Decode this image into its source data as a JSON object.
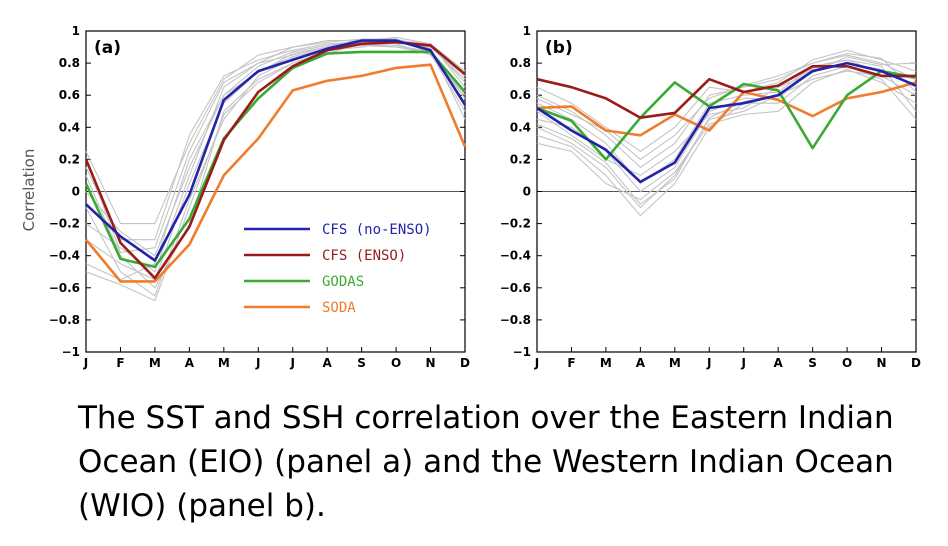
{
  "caption": "The SST and SSH correlation over the Eastern Indian Ocean (EIO) (panel a) and the Western Indian Ocean (WIO) (panel b).",
  "ylabel": "Correlation",
  "colors": {
    "CFS (no-ENSO)": "#2222aa",
    "CFS (ENSO)": "#9b1b1b",
    "GODAS": "#3aaa35",
    "SODA": "#f07c2c",
    "members": "#c4c4c4",
    "zero": "#555555"
  },
  "legend": [
    "CFS (no-ENSO)",
    "CFS (ENSO)",
    "GODAS",
    "SODA"
  ],
  "chart_data": [
    {
      "type": "line",
      "panel_label": "(a)",
      "categories": [
        "J",
        "F",
        "M",
        "A",
        "M",
        "J",
        "J",
        "A",
        "S",
        "O",
        "N",
        "D"
      ],
      "ylim": [
        -1,
        1
      ],
      "yticks": [
        -1,
        -0.8,
        -0.6,
        -0.4,
        -0.2,
        0,
        0.2,
        0.4,
        0.6,
        0.8,
        1
      ],
      "ytick_labels": [
        "−1",
        "−0.8",
        "−0.6",
        "−0.4",
        "−0.2",
        "0",
        "0.2",
        "0.4",
        "0.6",
        "0.8",
        "1"
      ],
      "zero_line": true,
      "legend_position": "center-right",
      "series": [
        {
          "name": "CFS (no-ENSO)",
          "values": [
            -0.08,
            -0.28,
            -0.43,
            -0.02,
            0.57,
            0.75,
            0.82,
            0.89,
            0.94,
            0.94,
            0.88,
            0.54
          ]
        },
        {
          "name": "CFS (ENSO)",
          "values": [
            0.2,
            -0.32,
            -0.54,
            -0.22,
            0.32,
            0.62,
            0.78,
            0.88,
            0.92,
            0.93,
            0.91,
            0.73
          ]
        },
        {
          "name": "GODAS",
          "values": [
            0.05,
            -0.42,
            -0.47,
            -0.17,
            0.33,
            0.58,
            0.77,
            0.86,
            0.87,
            0.87,
            0.87,
            0.62
          ]
        },
        {
          "name": "SODA",
          "values": [
            -0.3,
            -0.56,
            -0.56,
            -0.33,
            0.1,
            0.33,
            0.63,
            0.69,
            0.72,
            0.77,
            0.79,
            0.28
          ]
        }
      ],
      "members": [
        [
          0.25,
          -0.2,
          -0.2,
          0.3,
          0.7,
          0.85,
          0.9,
          0.93,
          0.95,
          0.95,
          0.9,
          0.7
        ],
        [
          -0.2,
          -0.35,
          -0.5,
          0.1,
          0.65,
          0.8,
          0.85,
          0.9,
          0.93,
          0.92,
          0.85,
          0.6
        ],
        [
          0.1,
          -0.4,
          -0.6,
          -0.2,
          0.5,
          0.7,
          0.8,
          0.88,
          0.92,
          0.9,
          0.88,
          0.55
        ],
        [
          -0.45,
          -0.55,
          -0.45,
          0.2,
          0.6,
          0.78,
          0.87,
          0.91,
          0.94,
          0.93,
          0.9,
          0.72
        ],
        [
          -0.1,
          -0.5,
          -0.65,
          -0.05,
          0.45,
          0.72,
          0.83,
          0.88,
          0.9,
          0.94,
          0.92,
          0.65
        ],
        [
          0.15,
          -0.3,
          -0.3,
          0.35,
          0.72,
          0.82,
          0.88,
          0.92,
          0.93,
          0.95,
          0.89,
          0.45
        ],
        [
          -0.3,
          -0.45,
          -0.55,
          0.05,
          0.55,
          0.75,
          0.84,
          0.89,
          0.91,
          0.9,
          0.86,
          0.5
        ],
        [
          0.0,
          -0.25,
          -0.4,
          0.15,
          0.6,
          0.74,
          0.86,
          0.9,
          0.95,
          0.93,
          0.91,
          0.68
        ],
        [
          -0.5,
          -0.58,
          -0.68,
          -0.1,
          0.48,
          0.68,
          0.8,
          0.86,
          0.92,
          0.91,
          0.87,
          0.58
        ],
        [
          0.2,
          -0.38,
          -0.35,
          0.25,
          0.68,
          0.8,
          0.9,
          0.94,
          0.94,
          0.96,
          0.92,
          0.75
        ]
      ]
    },
    {
      "type": "line",
      "panel_label": "(b)",
      "categories": [
        "J",
        "F",
        "M",
        "A",
        "M",
        "J",
        "J",
        "A",
        "S",
        "O",
        "N",
        "D"
      ],
      "ylim": [
        -1,
        1
      ],
      "yticks": [
        -1,
        -0.8,
        -0.6,
        -0.4,
        -0.2,
        0,
        0.2,
        0.4,
        0.6,
        0.8,
        1
      ],
      "ytick_labels": [
        "−1",
        "−0.8",
        "−0.6",
        "−0.4",
        "−0.2",
        "0",
        "0.2",
        "0.4",
        "0.6",
        "0.8",
        "1"
      ],
      "zero_line": true,
      "series": [
        {
          "name": "CFS (no-ENSO)",
          "values": [
            0.52,
            0.38,
            0.26,
            0.06,
            0.18,
            0.52,
            0.55,
            0.6,
            0.75,
            0.8,
            0.75,
            0.66
          ]
        },
        {
          "name": "CFS (ENSO)",
          "values": [
            0.7,
            0.65,
            0.58,
            0.46,
            0.49,
            0.7,
            0.62,
            0.66,
            0.78,
            0.78,
            0.72,
            0.72
          ]
        },
        {
          "name": "GODAS",
          "values": [
            0.52,
            0.44,
            0.2,
            0.46,
            0.68,
            0.53,
            0.67,
            0.63,
            0.27,
            0.6,
            0.75,
            0.71
          ]
        },
        {
          "name": "SODA",
          "values": [
            0.52,
            0.53,
            0.38,
            0.35,
            0.48,
            0.38,
            0.62,
            0.57,
            0.47,
            0.58,
            0.62,
            0.68
          ]
        }
      ],
      "members": [
        [
          0.6,
          0.5,
          0.35,
          0.15,
          0.3,
          0.6,
          0.65,
          0.7,
          0.8,
          0.85,
          0.8,
          0.7
        ],
        [
          0.4,
          0.3,
          0.15,
          -0.1,
          0.1,
          0.45,
          0.5,
          0.6,
          0.7,
          0.75,
          0.72,
          0.6
        ],
        [
          0.55,
          0.45,
          0.3,
          0.05,
          0.2,
          0.55,
          0.6,
          0.62,
          0.78,
          0.82,
          0.78,
          0.5
        ],
        [
          0.35,
          0.28,
          0.1,
          -0.15,
          0.05,
          0.4,
          0.55,
          0.55,
          0.72,
          0.78,
          0.7,
          0.45
        ],
        [
          0.65,
          0.55,
          0.4,
          0.25,
          0.4,
          0.65,
          0.62,
          0.68,
          0.82,
          0.88,
          0.82,
          0.75
        ],
        [
          0.45,
          0.4,
          0.25,
          0.0,
          0.15,
          0.5,
          0.58,
          0.58,
          0.76,
          0.8,
          0.76,
          0.65
        ],
        [
          0.5,
          0.35,
          0.2,
          0.1,
          0.25,
          0.48,
          0.52,
          0.65,
          0.74,
          0.84,
          0.79,
          0.8
        ],
        [
          0.3,
          0.25,
          0.05,
          -0.05,
          0.12,
          0.42,
          0.48,
          0.5,
          0.68,
          0.76,
          0.68,
          0.55
        ],
        [
          0.58,
          0.48,
          0.38,
          0.2,
          0.35,
          0.58,
          0.66,
          0.72,
          0.8,
          0.86,
          0.83,
          0.62
        ],
        [
          0.42,
          0.33,
          0.18,
          -0.08,
          0.08,
          0.46,
          0.56,
          0.6,
          0.77,
          0.82,
          0.74,
          0.7
        ]
      ]
    }
  ]
}
